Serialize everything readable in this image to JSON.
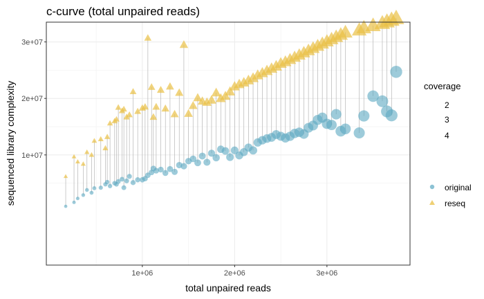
{
  "chart_data": {
    "type": "scatter",
    "title": "c-curve (total unpaired reads)",
    "xlabel": "total unpaired reads",
    "ylabel": "sequenced library complexity",
    "xlim": [
      -40000,
      3900000
    ],
    "ylim": [
      -9500000,
      33500000
    ],
    "x_ticks": [
      1000000,
      2000000,
      3000000
    ],
    "x_tick_labels": [
      "1e+06",
      "2e+06",
      "3e+06"
    ],
    "y_ticks": [
      10000000,
      20000000,
      30000000
    ],
    "y_tick_labels": [
      "1e+07",
      "2e+07",
      "3e+07"
    ],
    "grid": true,
    "legend_placement": "right",
    "size_legend": {
      "title": "coverage",
      "items": [
        "2",
        "3",
        "4"
      ]
    },
    "colors": {
      "original": "#5ba8c2",
      "reseq": "#e9c046",
      "connector": "#b5b5b5",
      "panel_border": "#333333",
      "grid": "#ebebeb"
    },
    "series": [
      {
        "name": "original",
        "marker": "circle",
        "points": [
          [
            170000,
            900000
          ],
          [
            260000,
            1600000
          ],
          [
            300000,
            2300000
          ],
          [
            360000,
            2900000
          ],
          [
            400000,
            3800000
          ],
          [
            450000,
            3300000
          ],
          [
            480000,
            4100000
          ],
          [
            550000,
            4200000
          ],
          [
            600000,
            4800000
          ],
          [
            620000,
            5200000
          ],
          [
            650000,
            4500000
          ],
          [
            700000,
            5000000
          ],
          [
            720000,
            4800000
          ],
          [
            740000,
            5300000
          ],
          [
            780000,
            5700000
          ],
          [
            800000,
            4200000
          ],
          [
            830000,
            5400000
          ],
          [
            860000,
            6200000
          ],
          [
            900000,
            5100000
          ],
          [
            950000,
            5600000
          ],
          [
            1000000,
            5600000
          ],
          [
            1030000,
            5800000
          ],
          [
            1060000,
            6400000
          ],
          [
            1100000,
            6900000
          ],
          [
            1120000,
            7600000
          ],
          [
            1150000,
            7200000
          ],
          [
            1200000,
            7400000
          ],
          [
            1250000,
            6800000
          ],
          [
            1300000,
            7500000
          ],
          [
            1350000,
            7000000
          ],
          [
            1400000,
            8200000
          ],
          [
            1450000,
            8000000
          ],
          [
            1500000,
            8900000
          ],
          [
            1550000,
            9300000
          ],
          [
            1600000,
            8600000
          ],
          [
            1650000,
            9800000
          ],
          [
            1700000,
            8700000
          ],
          [
            1750000,
            10300000
          ],
          [
            1800000,
            9500000
          ],
          [
            1850000,
            11000000
          ],
          [
            1900000,
            10700000
          ],
          [
            1950000,
            9600000
          ],
          [
            2000000,
            10800000
          ],
          [
            2050000,
            9900000
          ],
          [
            2100000,
            10500000
          ],
          [
            2150000,
            11300000
          ],
          [
            2200000,
            10800000
          ],
          [
            2250000,
            12200000
          ],
          [
            2300000,
            12600000
          ],
          [
            2350000,
            12900000
          ],
          [
            2400000,
            13100000
          ],
          [
            2450000,
            13600000
          ],
          [
            2500000,
            13300000
          ],
          [
            2550000,
            13000000
          ],
          [
            2600000,
            13300000
          ],
          [
            2650000,
            13800000
          ],
          [
            2700000,
            14000000
          ],
          [
            2750000,
            13700000
          ],
          [
            2800000,
            14800000
          ],
          [
            2850000,
            15200000
          ],
          [
            2900000,
            16200000
          ],
          [
            2950000,
            16600000
          ],
          [
            3000000,
            15500000
          ],
          [
            3050000,
            15300000
          ],
          [
            3100000,
            17200000
          ],
          [
            3150000,
            14200000
          ],
          [
            3200000,
            14600000
          ],
          [
            3350000,
            13900000
          ],
          [
            3400000,
            16900000
          ],
          [
            3500000,
            20400000
          ],
          [
            3600000,
            19500000
          ],
          [
            3650000,
            17700000
          ],
          [
            3700000,
            17000000
          ],
          [
            3750000,
            24700000
          ]
        ]
      },
      {
        "name": "reseq",
        "marker": "triangle",
        "points": [
          [
            170000,
            6200000
          ],
          [
            260000,
            9700000
          ],
          [
            300000,
            8800000
          ],
          [
            360000,
            8400000
          ],
          [
            400000,
            10500000
          ],
          [
            450000,
            10000000
          ],
          [
            480000,
            12500000
          ],
          [
            550000,
            12800000
          ],
          [
            600000,
            11200000
          ],
          [
            620000,
            13200000
          ],
          [
            650000,
            15600000
          ],
          [
            700000,
            16000000
          ],
          [
            720000,
            16300000
          ],
          [
            740000,
            18400000
          ],
          [
            780000,
            17800000
          ],
          [
            800000,
            18100000
          ],
          [
            830000,
            16700000
          ],
          [
            860000,
            17100000
          ],
          [
            900000,
            21200000
          ],
          [
            950000,
            17700000
          ],
          [
            1000000,
            18300000
          ],
          [
            1030000,
            18500000
          ],
          [
            1060000,
            30700000
          ],
          [
            1100000,
            22000000
          ],
          [
            1120000,
            16700000
          ],
          [
            1150000,
            18500000
          ],
          [
            1200000,
            21500000
          ],
          [
            1250000,
            18200000
          ],
          [
            1300000,
            22100000
          ],
          [
            1350000,
            17200000
          ],
          [
            1400000,
            21000000
          ],
          [
            1450000,
            29500000
          ],
          [
            1500000,
            17300000
          ],
          [
            1550000,
            18700000
          ],
          [
            1600000,
            20100000
          ],
          [
            1650000,
            19500000
          ],
          [
            1700000,
            19300000
          ],
          [
            1750000,
            19700000
          ],
          [
            1800000,
            21000000
          ],
          [
            1850000,
            20000000
          ],
          [
            1900000,
            20400000
          ],
          [
            1950000,
            21200000
          ],
          [
            2000000,
            22100000
          ],
          [
            2050000,
            22500000
          ],
          [
            2100000,
            22800000
          ],
          [
            2150000,
            23200000
          ],
          [
            2200000,
            23600000
          ],
          [
            2250000,
            24100000
          ],
          [
            2300000,
            24500000
          ],
          [
            2350000,
            24900000
          ],
          [
            2400000,
            25300000
          ],
          [
            2450000,
            25700000
          ],
          [
            2500000,
            26200000
          ],
          [
            2550000,
            26500000
          ],
          [
            2600000,
            26900000
          ],
          [
            2650000,
            27300000
          ],
          [
            2700000,
            27700000
          ],
          [
            2750000,
            28100000
          ],
          [
            2800000,
            28500000
          ],
          [
            2850000,
            28900000
          ],
          [
            2900000,
            29300000
          ],
          [
            2950000,
            29700000
          ],
          [
            3000000,
            30100000
          ],
          [
            3050000,
            30500000
          ],
          [
            3100000,
            30900000
          ],
          [
            3150000,
            31300000
          ],
          [
            3200000,
            31700000
          ],
          [
            3350000,
            32100000
          ],
          [
            3400000,
            32500000
          ],
          [
            3500000,
            32900000
          ],
          [
            3600000,
            33300000
          ],
          [
            3650000,
            33600000
          ],
          [
            3700000,
            33900000
          ],
          [
            3750000,
            34200000
          ]
        ]
      }
    ]
  }
}
